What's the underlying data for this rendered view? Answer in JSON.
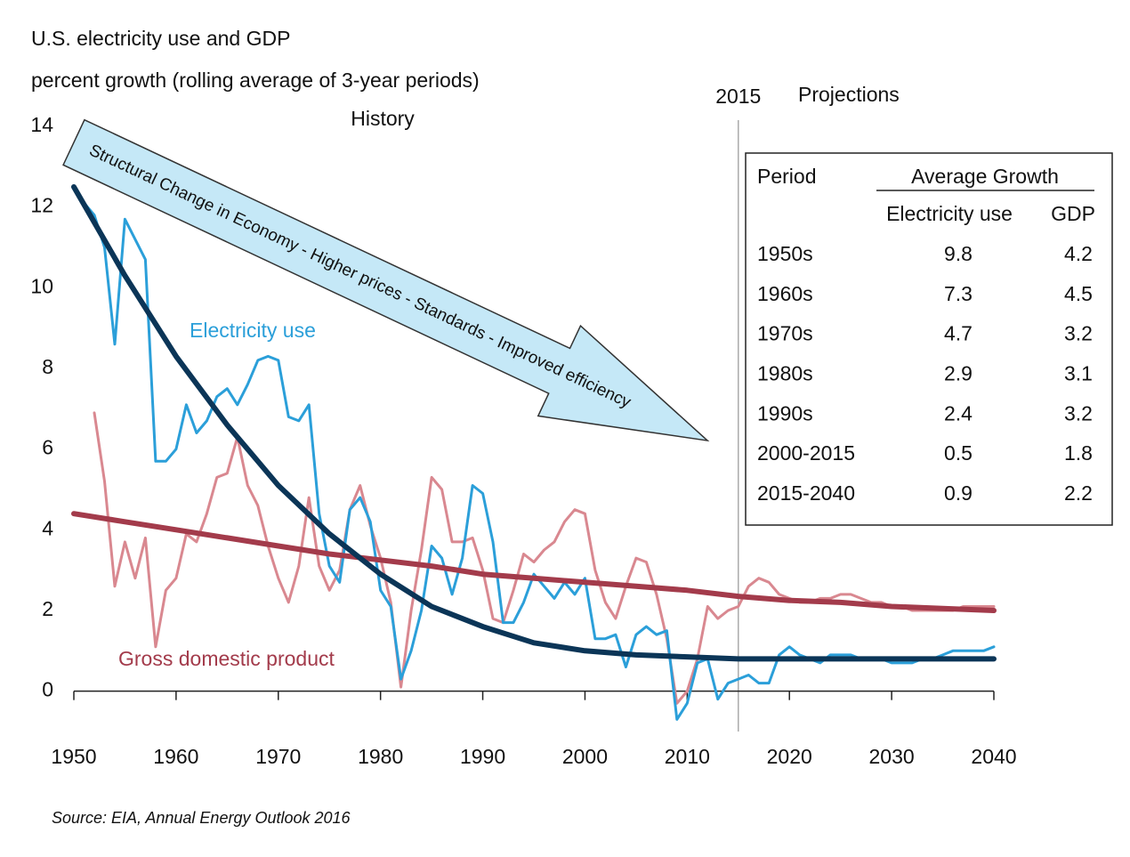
{
  "chart_data": {
    "type": "line",
    "title": "U.S. electricity use and GDP",
    "subtitle": "percent growth (rolling average of 3-year periods)",
    "history_label": "History",
    "projection_label": "Projections",
    "divider": 2015,
    "arrow_text": "Structural Change in Economy - Higher prices - Standards - Improved efficiency",
    "source": "Source:  EIA, Annual Energy Outlook 2016",
    "x": [
      1950,
      1951,
      1952,
      1953,
      1954,
      1955,
      1956,
      1957,
      1958,
      1959,
      1960,
      1961,
      1962,
      1963,
      1964,
      1965,
      1966,
      1967,
      1968,
      1969,
      1970,
      1971,
      1972,
      1973,
      1974,
      1975,
      1976,
      1977,
      1978,
      1979,
      1980,
      1981,
      1982,
      1983,
      1984,
      1985,
      1986,
      1987,
      1988,
      1989,
      1990,
      1991,
      1992,
      1993,
      1994,
      1995,
      1996,
      1997,
      1998,
      1999,
      2000,
      2001,
      2002,
      2003,
      2004,
      2005,
      2006,
      2007,
      2008,
      2009,
      2010,
      2011,
      2012,
      2013,
      2014,
      2015,
      2016,
      2017,
      2018,
      2019,
      2020,
      2021,
      2022,
      2023,
      2024,
      2025,
      2026,
      2027,
      2028,
      2029,
      2030,
      2031,
      2032,
      2033,
      2034,
      2035,
      2036,
      2037,
      2038,
      2039,
      2040
    ],
    "series": [
      {
        "name": "Electricity use",
        "color": "#2b9fd9",
        "width": 3,
        "values": [
          null,
          12.1,
          11.8,
          11.0,
          8.6,
          11.7,
          11.2,
          10.7,
          5.7,
          5.7,
          6.0,
          7.1,
          6.4,
          6.7,
          7.3,
          7.5,
          7.1,
          7.6,
          8.2,
          8.3,
          8.2,
          6.8,
          6.7,
          7.1,
          4.4,
          3.1,
          2.7,
          4.5,
          4.8,
          4.2,
          2.5,
          2.1,
          0.3,
          1.0,
          2.0,
          3.6,
          3.3,
          2.4,
          3.3,
          5.1,
          4.9,
          3.7,
          1.7,
          1.7,
          2.2,
          2.9,
          2.6,
          2.3,
          2.7,
          2.4,
          2.8,
          1.3,
          1.3,
          1.4,
          0.6,
          1.4,
          1.6,
          1.4,
          1.5,
          -0.7,
          -0.3,
          0.7,
          0.8,
          -0.2,
          0.2,
          0.3,
          0.4,
          0.2,
          0.2,
          0.9,
          1.1,
          0.9,
          0.8,
          0.7,
          0.9,
          0.9,
          0.9,
          0.8,
          0.8,
          0.8,
          0.7,
          0.7,
          0.7,
          0.8,
          0.8,
          0.9,
          1.0,
          1.0,
          1.0,
          1.0,
          1.1
        ]
      },
      {
        "name": "Gross domestic product",
        "color": "#d98890",
        "width": 3,
        "values": [
          null,
          null,
          6.9,
          5.2,
          2.6,
          3.7,
          2.8,
          3.8,
          1.1,
          2.5,
          2.8,
          3.9,
          3.7,
          4.4,
          5.3,
          5.4,
          6.3,
          5.1,
          4.6,
          3.6,
          2.8,
          2.2,
          3.1,
          4.8,
          3.1,
          2.5,
          3.0,
          4.5,
          5.1,
          4.1,
          3.3,
          2.2,
          0.1,
          2.0,
          3.5,
          5.3,
          5.0,
          3.7,
          3.7,
          3.8,
          3.0,
          1.8,
          1.7,
          2.5,
          3.4,
          3.2,
          3.5,
          3.7,
          4.2,
          4.5,
          4.4,
          3.0,
          2.2,
          1.8,
          2.6,
          3.3,
          3.2,
          2.4,
          1.3,
          -0.3,
          0.0,
          0.8,
          2.1,
          1.8,
          2.0,
          2.1,
          2.6,
          2.8,
          2.7,
          2.4,
          2.3,
          2.2,
          2.2,
          2.3,
          2.3,
          2.4,
          2.4,
          2.3,
          2.2,
          2.2,
          2.1,
          2.1,
          2.0,
          2.0,
          2.0,
          2.0,
          2.0,
          2.1,
          2.1,
          2.1,
          2.1
        ]
      },
      {
        "color": "#0b3557",
        "width": 6,
        "x": [
          1950,
          1955,
          1960,
          1965,
          1970,
          1975,
          1980,
          1985,
          1990,
          1995,
          2000,
          2005,
          2010,
          2015,
          2020,
          2025,
          2030,
          2035,
          2040
        ],
        "values": [
          12.5,
          10.3,
          8.3,
          6.6,
          5.1,
          3.9,
          2.9,
          2.1,
          1.6,
          1.2,
          1.0,
          0.9,
          0.85,
          0.8,
          0.8,
          0.8,
          0.8,
          0.8,
          0.8
        ]
      },
      {
        "color": "#a33b4b",
        "width": 6,
        "x": [
          1950,
          1955,
          1960,
          1965,
          1970,
          1975,
          1980,
          1985,
          1990,
          1995,
          2000,
          2005,
          2010,
          2015,
          2020,
          2025,
          2030,
          2035,
          2040
        ],
        "values": [
          4.4,
          4.2,
          4.0,
          3.8,
          3.6,
          3.4,
          3.25,
          3.1,
          2.9,
          2.8,
          2.7,
          2.6,
          2.5,
          2.35,
          2.25,
          2.2,
          2.1,
          2.05,
          2.0
        ]
      }
    ],
    "xlim": [
      1950,
      2040
    ],
    "xticks": [
      1950,
      1960,
      1970,
      1980,
      1990,
      2000,
      2010,
      2020,
      2030,
      2040
    ],
    "ylim": [
      -1,
      14
    ],
    "yticks": [
      0,
      2,
      4,
      6,
      8,
      10,
      12,
      14
    ],
    "grid": false
  },
  "table": {
    "period": "Period",
    "group": "Average Growth",
    "columns": [
      "Electricity use",
      "GDP"
    ],
    "rows": [
      [
        "1950s",
        9.8,
        4.2
      ],
      [
        "1960s",
        7.3,
        4.5
      ],
      [
        "1970s",
        4.7,
        3.2
      ],
      [
        "1980s",
        2.9,
        3.1
      ],
      [
        "1990s",
        2.4,
        3.2
      ],
      [
        "2000-2015",
        0.5,
        1.8
      ],
      [
        "2015-2040",
        0.9,
        2.2
      ]
    ]
  }
}
